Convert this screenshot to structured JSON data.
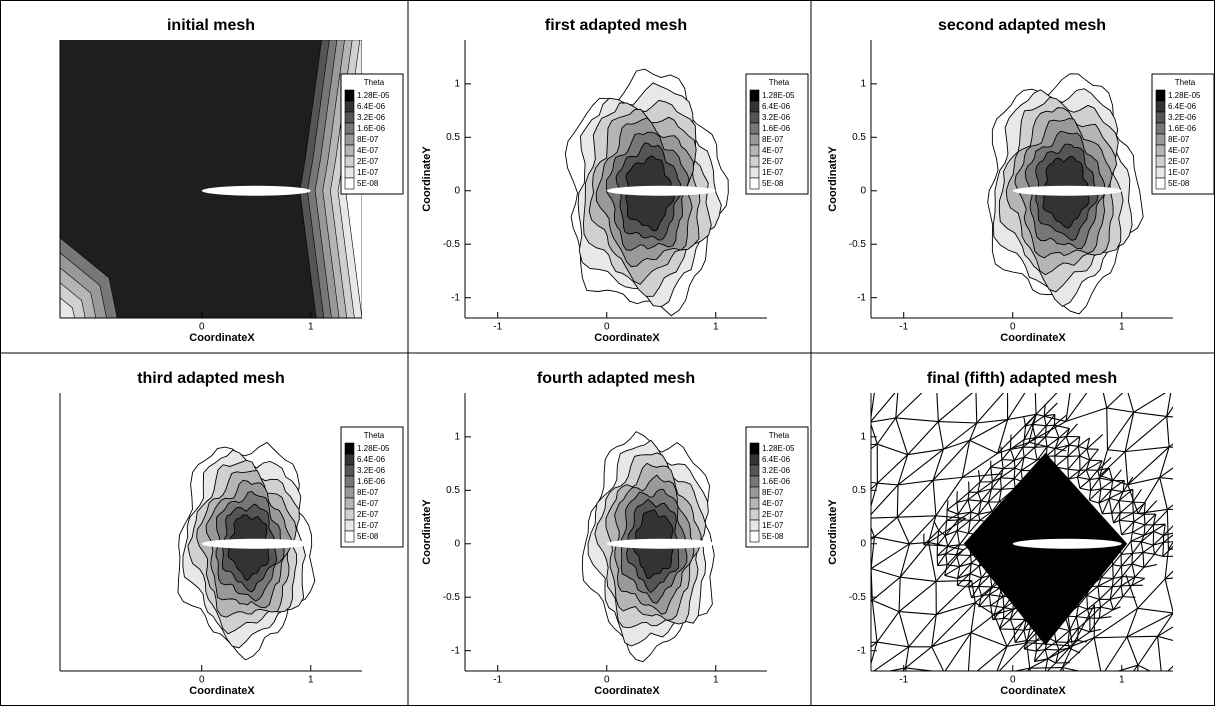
{
  "legend": {
    "title": "Theta",
    "levels": [
      {
        "value": 1.28e-05,
        "label": "1.28E-05"
      },
      {
        "value": 6.4e-06,
        "label": "6.4E-06"
      },
      {
        "value": 3.2e-06,
        "label": "3.2E-06"
      },
      {
        "value": 1.6e-06,
        "label": "1.6E-06"
      },
      {
        "value": 8e-07,
        "label": "8E-07"
      },
      {
        "value": 4e-07,
        "label": "4E-07"
      },
      {
        "value": 2e-07,
        "label": "2E-07"
      },
      {
        "value": 1e-07,
        "label": "1E-07"
      },
      {
        "value": 5e-08,
        "label": "5E-08"
      }
    ],
    "colors": [
      "#000000",
      "#333333",
      "#555555",
      "#777777",
      "#999999",
      "#b5b5b5",
      "#d0d0d0",
      "#e8e8e8",
      "#ffffff"
    ]
  },
  "chart_data": [
    {
      "type": "contour",
      "title": "initial mesh",
      "xlabel": "CoordinateX",
      "xlim": [
        -1.3,
        1.47
      ],
      "ylim": [
        -1.19,
        1.41
      ],
      "xticks": [
        0,
        1
      ],
      "show_legend": true
    },
    {
      "type": "contour",
      "title": "first adapted mesh",
      "xlabel": "CoordinateX",
      "ylabel": "CoordinateY",
      "xlim": [
        -1.3,
        1.47
      ],
      "ylim": [
        -1.19,
        1.41
      ],
      "xticks": [
        -1,
        0,
        1
      ],
      "yticks": [
        -1,
        -0.5,
        0,
        0.5,
        1
      ],
      "show_legend": true
    },
    {
      "type": "contour",
      "title": "second adapted mesh",
      "xlabel": "CoordinateX",
      "ylabel": "CoordinateY",
      "xlim": [
        -1.3,
        1.47
      ],
      "ylim": [
        -1.19,
        1.41
      ],
      "xticks": [
        -1,
        0,
        1
      ],
      "yticks": [
        -1,
        -0.5,
        0,
        0.5,
        1
      ],
      "show_legend": true
    },
    {
      "type": "contour",
      "title": "third adapted mesh",
      "xlabel": "CoordinateX",
      "xlim": [
        -1.3,
        1.47
      ],
      "ylim": [
        -1.19,
        1.41
      ],
      "xticks": [
        0,
        1
      ],
      "show_legend": true
    },
    {
      "type": "contour",
      "title": "fourth adapted mesh",
      "xlabel": "CoordinateX",
      "ylabel": "CoordinateY",
      "xlim": [
        -1.3,
        1.47
      ],
      "ylim": [
        -1.19,
        1.41
      ],
      "xticks": [
        -1,
        0,
        1
      ],
      "yticks": [
        -1,
        -0.5,
        0,
        0.5,
        1
      ],
      "show_legend": true
    },
    {
      "type": "mesh",
      "title": "final (fifth) adapted mesh",
      "xlabel": "CoordinateX",
      "ylabel": "CoordinateY",
      "xlim": [
        -1.3,
        1.47
      ],
      "ylim": [
        -1.19,
        1.41
      ],
      "xticks": [
        -1,
        0,
        1
      ],
      "yticks": [
        -1,
        -0.5,
        0,
        0.5,
        1
      ],
      "show_legend": false
    }
  ]
}
